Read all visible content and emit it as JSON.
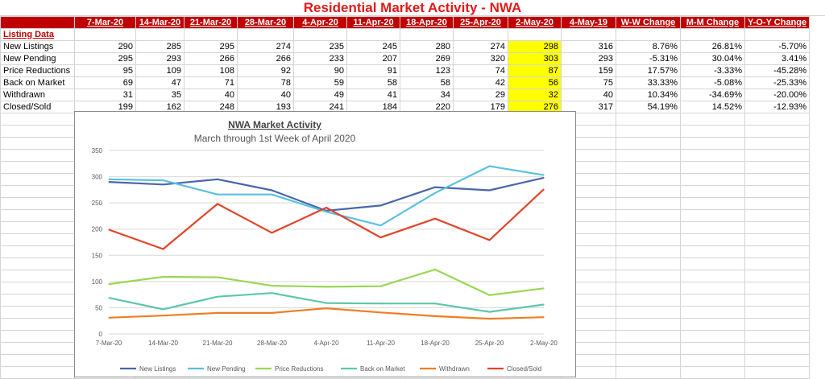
{
  "sheet": {
    "title": "Residential Market Activity - NWA",
    "headers": [
      "7-Mar-20",
      "14-Mar-20",
      "21-Mar-20",
      "28-Mar-20",
      "4-Apr-20",
      "11-Apr-20",
      "18-Apr-20",
      "25-Apr-20",
      "2-May-20",
      "4-May-19",
      "W-W Change",
      "M-M Change",
      "Y-O-Y Change"
    ],
    "section_label": "Listing Data",
    "rows": [
      {
        "label": "New Listings",
        "values": [
          "290",
          "285",
          "295",
          "274",
          "235",
          "245",
          "280",
          "274",
          "298",
          "316",
          "8.76%",
          "26.81%",
          "-5.70%"
        ]
      },
      {
        "label": "New Pending",
        "values": [
          "295",
          "293",
          "266",
          "266",
          "233",
          "207",
          "269",
          "320",
          "303",
          "293",
          "-5.31%",
          "30.04%",
          "3.41%"
        ]
      },
      {
        "label": "Price Reductions",
        "values": [
          "95",
          "109",
          "108",
          "92",
          "90",
          "91",
          "123",
          "74",
          "87",
          "159",
          "17.57%",
          "-3.33%",
          "-45.28%"
        ]
      },
      {
        "label": "Back on Market",
        "values": [
          "69",
          "47",
          "71",
          "78",
          "59",
          "58",
          "58",
          "42",
          "56",
          "75",
          "33.33%",
          "-5.08%",
          "-25.33%"
        ]
      },
      {
        "label": "Withdrawn",
        "values": [
          "31",
          "35",
          "40",
          "40",
          "49",
          "41",
          "34",
          "29",
          "32",
          "40",
          "10.34%",
          "-34.69%",
          "-20.00%"
        ]
      },
      {
        "label": "Closed/Sold",
        "values": [
          "199",
          "162",
          "248",
          "193",
          "241",
          "184",
          "220",
          "179",
          "276",
          "317",
          "54.19%",
          "14.52%",
          "-12.93%"
        ]
      }
    ],
    "highlight_color": "#ffff00",
    "header_color": "#c00000"
  },
  "chart_data": {
    "type": "line",
    "title": "NWA Market Activity",
    "subtitle": "March through 1st Week of April 2020",
    "categories": [
      "7-Mar-20",
      "14-Mar-20",
      "21-Mar-20",
      "28-Mar-20",
      "4-Apr-20",
      "11-Apr-20",
      "18-Apr-20",
      "25-Apr-20",
      "2-May-20"
    ],
    "ylim": [
      0,
      350
    ],
    "yticks": [
      0,
      50,
      100,
      150,
      200,
      250,
      300,
      350
    ],
    "grid": true,
    "legend": "bottom",
    "series": [
      {
        "name": "New Listings",
        "color": "#4a66ac",
        "values": [
          290,
          285,
          295,
          274,
          235,
          245,
          280,
          274,
          298
        ]
      },
      {
        "name": "New Pending",
        "color": "#5bc0de",
        "values": [
          295,
          293,
          266,
          266,
          233,
          207,
          269,
          320,
          303
        ]
      },
      {
        "name": "Price Reductions",
        "color": "#9ad653",
        "values": [
          95,
          109,
          108,
          92,
          90,
          91,
          123,
          74,
          87
        ]
      },
      {
        "name": "Back on Market",
        "color": "#5cc7a8",
        "values": [
          69,
          47,
          71,
          78,
          59,
          58,
          58,
          42,
          56
        ]
      },
      {
        "name": "Withdrawn",
        "color": "#f07d21",
        "values": [
          31,
          35,
          40,
          40,
          49,
          41,
          34,
          29,
          32
        ]
      },
      {
        "name": "Closed/Sold",
        "color": "#e0442a",
        "values": [
          199,
          162,
          248,
          193,
          241,
          184,
          220,
          179,
          276
        ]
      }
    ]
  }
}
